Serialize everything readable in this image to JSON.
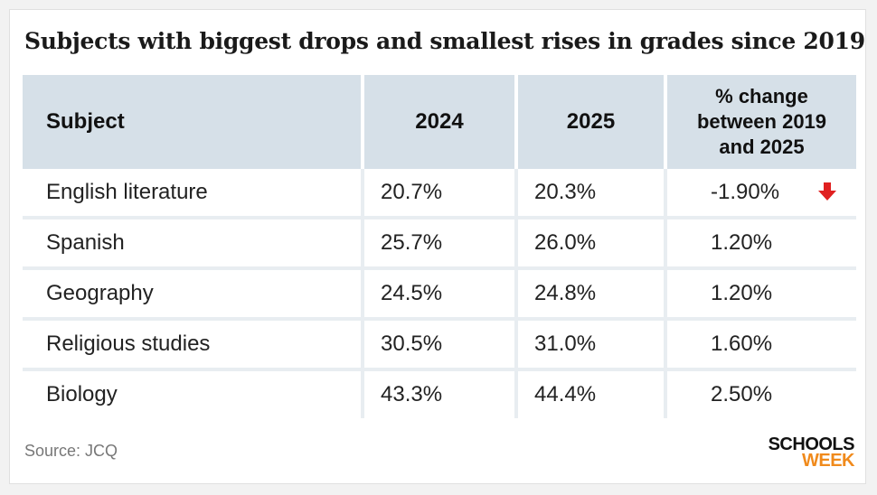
{
  "title": "Subjects with biggest drops and smallest rises in grades since 2019",
  "colors": {
    "header_bg": "#d6e0e8",
    "accent_down": "#e02020",
    "brand_orange": "#f08a1c"
  },
  "chart_data": {
    "type": "table",
    "title": "Subjects with biggest drops and smallest rises in grades since 2019",
    "headers": {
      "subject": "Subject",
      "y2024": "2024",
      "y2025": "2025",
      "change_line1": "% change",
      "change_line2": "between 2019",
      "change_line3": "and 2025"
    },
    "rows": [
      {
        "subject": "English literature",
        "y2024": "20.7%",
        "y2025": "20.3%",
        "change": "-1.90%",
        "indicator": "down-arrow-icon"
      },
      {
        "subject": "Spanish",
        "y2024": "25.7%",
        "y2025": "26.0%",
        "change": "1.20%"
      },
      {
        "subject": "Geography",
        "y2024": "24.5%",
        "y2025": "24.8%",
        "change": "1.20%"
      },
      {
        "subject": "Religious studies",
        "y2024": "30.5%",
        "y2025": "31.0%",
        "change": "1.60%"
      },
      {
        "subject": "Biology",
        "y2024": "43.3%",
        "y2025": "44.4%",
        "change": "2.50%"
      }
    ]
  },
  "footer": {
    "source": "Source: JCQ",
    "logo_line1": "SCHOOLS",
    "logo_line2": "WEEK"
  }
}
